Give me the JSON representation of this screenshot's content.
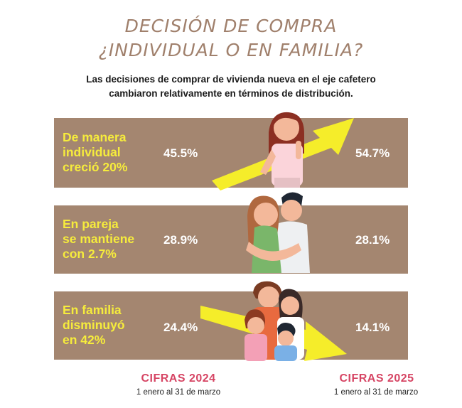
{
  "title_line1": "DECISIÓN DE COMPRA",
  "title_line2": "¿INDIVIDUAL O EN FAMILIA?",
  "subtitle_line1": "Las decisiones de comprar de vivienda nueva en el eje cafetero",
  "subtitle_line2": "cambiaron relativamente en términos de distribución.",
  "rows": [
    {
      "label_lines": [
        "De manera",
        "individual",
        "creció 20%"
      ],
      "v2024": "45.5%",
      "v2025": "54.7%"
    },
    {
      "label_lines": [
        "En pareja",
        "se mantiene",
        "con 2.7%"
      ],
      "v2024": "28.9%",
      "v2025": "28.1%"
    },
    {
      "label_lines": [
        "En familia",
        "disminuyó",
        "en 42%"
      ],
      "v2024": "24.4%",
      "v2025": "14.1%"
    }
  ],
  "footer": {
    "left_title": "CIFRAS 2024",
    "left_range": "1 enero al 31 de marzo",
    "right_title": "CIFRAS 2025",
    "right_range": "1 enero al 31 de marzo"
  },
  "colors": {
    "band": "#a48670",
    "label": "#f6ec3c",
    "accent": "#d64564",
    "arrow": "#f5ed2a",
    "title": "#a0806c"
  },
  "chart_data": {
    "type": "table",
    "categories": [
      "individual",
      "pareja",
      "familia"
    ],
    "series": [
      {
        "name": "CIFRAS 2024",
        "values": [
          45.5,
          28.9,
          24.4
        ]
      },
      {
        "name": "CIFRAS 2025",
        "values": [
          54.7,
          28.1,
          14.1
        ]
      }
    ]
  }
}
